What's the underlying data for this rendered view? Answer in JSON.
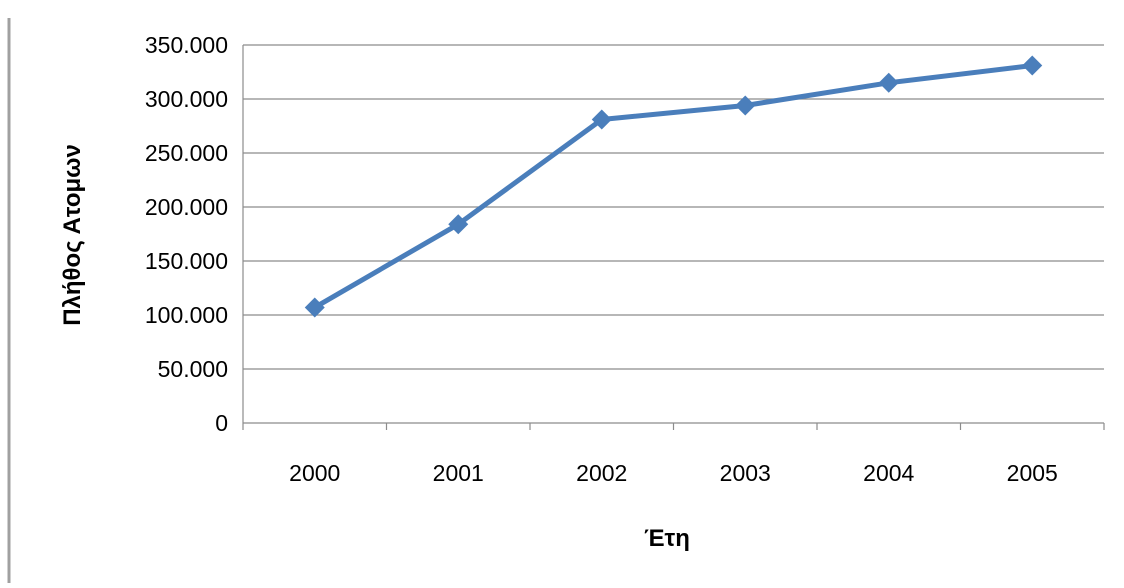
{
  "chart_data": {
    "type": "line",
    "title": "",
    "xlabel": "Έτη",
    "ylabel": "Πλήθος Ατομων",
    "categories": [
      "2000",
      "2001",
      "2002",
      "2003",
      "2004",
      "2005"
    ],
    "series": [
      {
        "values": [
          107000,
          184000,
          281000,
          294000,
          315000,
          331000
        ],
        "color": "#4a7ebb",
        "marker": "diamond"
      }
    ],
    "ylim": [
      0,
      350000
    ],
    "yticks": [
      0,
      50000,
      100000,
      150000,
      200000,
      250000,
      300000,
      350000
    ],
    "ytick_labels": [
      "0",
      "50.000",
      "100.000",
      "150.000",
      "200.000",
      "250.000",
      "300.000",
      "350.000"
    ],
    "grid": true,
    "legend": "none"
  }
}
